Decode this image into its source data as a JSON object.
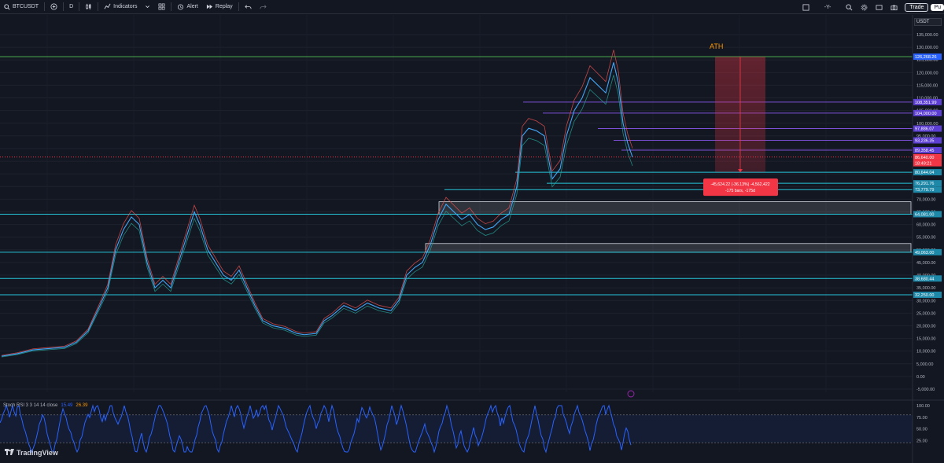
{
  "toolbar": {
    "symbol": "BTCUSDT",
    "interval": "D",
    "indicators_label": "Indicators",
    "alert_label": "Alert",
    "replay_label": "Replay",
    "currency_mode": "-Y-",
    "trade_label": "Trade",
    "publish_label": "Pu"
  },
  "chart": {
    "currency_label": "USDT",
    "annotation_ath": "ATH",
    "measure_line1": "-45,624.22 (-36.13%) -4,562,422",
    "measure_line2": "-175 bars, -175d",
    "price_axis": [
      "135,000.00",
      "130,000.00",
      "125,000.00",
      "120,000.00",
      "115,000.00",
      "110,000.00",
      "105,000.00",
      "100,000.00",
      "95,000.00",
      "90,000.00",
      "85,000.00",
      "80,000.00",
      "75,000.00",
      "70,000.00",
      "65,000.00",
      "60,000.00",
      "55,000.00",
      "50,000.00",
      "45,000.00",
      "40,000.00",
      "35,000.00",
      "30,000.00",
      "25,000.00",
      "20,000.00",
      "15,000.00",
      "10,000.00",
      "5,000.00",
      "0.00",
      "-5,000.00"
    ],
    "level_tags": [
      {
        "text": "126,268.26",
        "color": "#2962ff"
      },
      {
        "text": "108,351.99",
        "color": "#5d3fd3"
      },
      {
        "text": "104,000.00",
        "color": "#5d3fd3"
      },
      {
        "text": "97,886.07",
        "color": "#5d3fd3"
      },
      {
        "text": "93,236.35",
        "color": "#5d3fd3"
      },
      {
        "text": "89,358.45",
        "color": "#5d3fd3"
      },
      {
        "text": "86,640.00",
        "color": "#f23645"
      },
      {
        "text": "18:49:21",
        "color": "#f23645"
      },
      {
        "text": "80,644.04",
        "color": "#1e88a8"
      },
      {
        "text": "76,291.76",
        "color": "#1e88a8"
      },
      {
        "text": "73,779.79",
        "color": "#1e88a8"
      },
      {
        "text": "64,081.00",
        "color": "#1e88a8"
      },
      {
        "text": "49,063.00",
        "color": "#1e88a8"
      },
      {
        "text": "38,680.44",
        "color": "#1e88a8"
      },
      {
        "text": "32,250.00",
        "color": "#1e88a8"
      }
    ]
  },
  "rsi": {
    "legend_name": "Stoch RSI 3 3 14 14 close",
    "k_value": "15.49",
    "d_value": "26.39",
    "axis": [
      "100.00",
      "75.00",
      "50.00",
      "25.00"
    ]
  },
  "branding": {
    "logo_text": "TradingView"
  },
  "colors": {
    "background": "#131722",
    "ath_line": "#4caf50",
    "level_purple": "#7b4fd6",
    "level_cyan": "#26c6da",
    "candle_up": "#26a69a",
    "candle_down": "#ef5350",
    "rsi_k": "#2962ff"
  }
}
